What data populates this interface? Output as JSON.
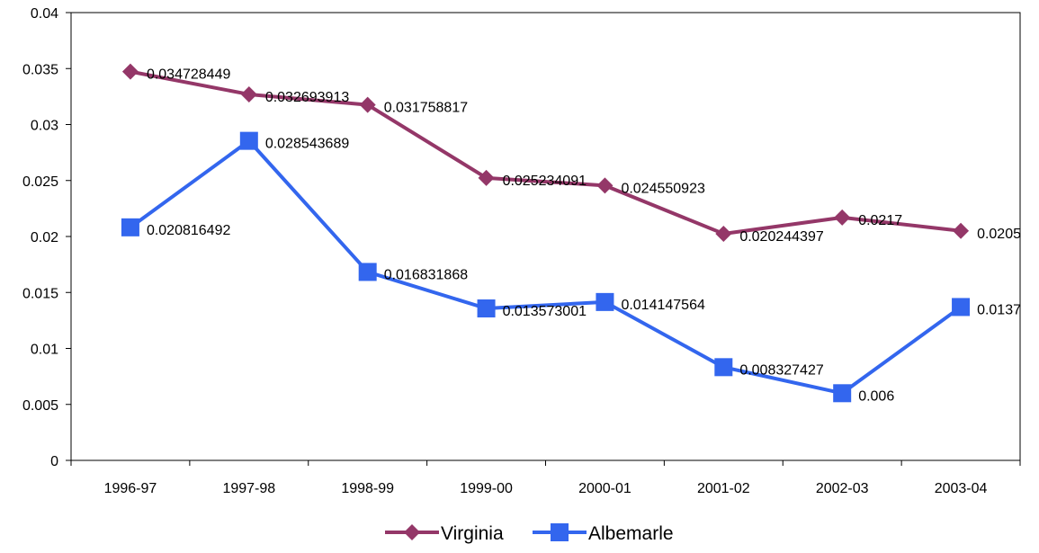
{
  "chart_data": {
    "type": "line",
    "title": "",
    "xlabel": "",
    "ylabel": "",
    "categories": [
      "1996-97",
      "1997-98",
      "1998-99",
      "1999-00",
      "2000-01",
      "2001-02",
      "2002-03",
      "2003-04"
    ],
    "ylim": [
      0,
      0.04
    ],
    "yticks": [
      "0",
      "0.005",
      "0.01",
      "0.015",
      "0.02",
      "0.025",
      "0.03",
      "0.035",
      "0.04"
    ],
    "grid": false,
    "legend": "bottom",
    "series": [
      {
        "name": "Virginia",
        "color": "#943768",
        "marker": "diamond",
        "values": [
          0.034728449,
          0.032693913,
          0.031758817,
          0.025234091,
          0.024550923,
          0.020244397,
          0.0217,
          0.0205
        ],
        "labels": [
          "0.034728449",
          "0.032693913",
          "0.031758817",
          "0.025234091",
          "0.024550923",
          "0.020244397",
          "0.0217",
          "0.0205"
        ]
      },
      {
        "name": "Albemarle",
        "color": "#3366ee",
        "marker": "square",
        "values": [
          0.020816492,
          0.028543689,
          0.016831868,
          0.013573001,
          0.014147564,
          0.008327427,
          0.006,
          0.0137
        ],
        "labels": [
          "0.020816492",
          "0.028543689",
          "0.016831868",
          "0.013573001",
          "0.014147564",
          "0.008327427",
          "0.006",
          "0.0137"
        ]
      }
    ]
  }
}
